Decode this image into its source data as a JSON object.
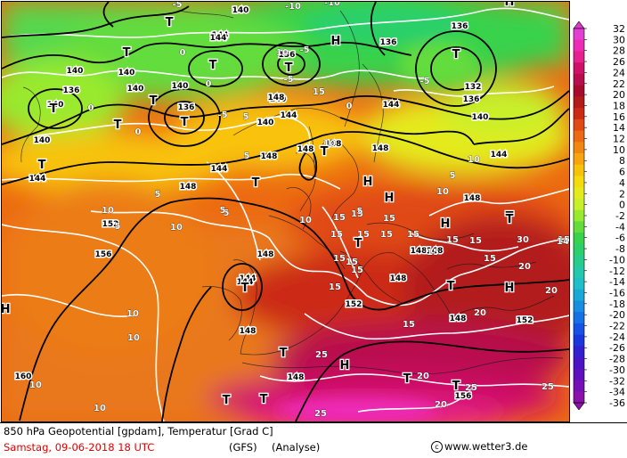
{
  "footer": {
    "title": "850 hPa Geopotential [gpdam], Temperatur [Grad C]",
    "date": "Samstag, 09-06-2018  18 UTC",
    "model": "(GFS)",
    "run": "(Analyse)",
    "copyright": "www.wetter3.de",
    "copyright_symbol": "c"
  },
  "legend": {
    "ticks": [
      "32",
      "30",
      "28",
      "26",
      "24",
      "22",
      "20",
      "18",
      "16",
      "14",
      "12",
      "10",
      "8",
      "6",
      "4",
      "2",
      "0",
      "-2",
      "-4",
      "-6",
      "-8",
      "-10",
      "-12",
      "-14",
      "-16",
      "-18",
      "-20",
      "-22",
      "-24",
      "-26",
      "-28",
      "-30",
      "-32",
      "-34",
      "-36"
    ],
    "colors": [
      "#e23fd3",
      "#ee2bb7",
      "#e6208e",
      "#cf1068",
      "#b80c4d",
      "#a80a2e",
      "#b31a1a",
      "#cc2a14",
      "#e04814",
      "#ec6a12",
      "#f2870f",
      "#f7a40d",
      "#f8c20a",
      "#f5da0d",
      "#e5ea1c",
      "#c8f02a",
      "#99ea2e",
      "#63dc3c",
      "#39d24c",
      "#2bd06b",
      "#27cc8c",
      "#24c8ac",
      "#1fbfc9",
      "#1aa8d8",
      "#188ee0",
      "#1770e5",
      "#1552e5",
      "#1a36dd",
      "#3020d0",
      "#4a14c6",
      "#5f0fbe",
      "#7410b4",
      "#8a12a8"
    ]
  },
  "map": {
    "geopotential_labels": [
      {
        "text": "140"
      },
      {
        "text": "140"
      },
      {
        "text": "140"
      },
      {
        "text": "136"
      },
      {
        "text": "140"
      },
      {
        "text": "136"
      },
      {
        "text": "144"
      },
      {
        "text": "136"
      },
      {
        "text": "140"
      },
      {
        "text": "144"
      },
      {
        "text": "140"
      },
      {
        "text": "136"
      },
      {
        "text": "144"
      },
      {
        "text": "140"
      },
      {
        "text": "144"
      },
      {
        "text": "136"
      },
      {
        "text": "132"
      },
      {
        "text": "136"
      },
      {
        "text": "140"
      },
      {
        "text": "144"
      },
      {
        "text": "144"
      },
      {
        "text": "148"
      },
      {
        "text": "148"
      },
      {
        "text": "148"
      },
      {
        "text": "148"
      },
      {
        "text": "148"
      },
      {
        "text": "152"
      },
      {
        "text": "156"
      },
      {
        "text": "148"
      },
      {
        "text": "144"
      },
      {
        "text": "148"
      },
      {
        "text": "148"
      },
      {
        "text": "148"
      },
      {
        "text": "152"
      },
      {
        "text": "148"
      },
      {
        "text": "152"
      },
      {
        "text": "148"
      },
      {
        "text": "160"
      },
      {
        "text": "148"
      },
      {
        "text": "156"
      },
      {
        "text": "140"
      },
      {
        "text": "144"
      },
      {
        "text": "140"
      },
      {
        "text": "148"
      },
      {
        "text": "144"
      },
      {
        "text": "148"
      }
    ],
    "temperature_labels": [
      {
        "text": "-5"
      },
      {
        "text": "-10"
      },
      {
        "text": "-10"
      },
      {
        "text": "-5"
      },
      {
        "text": "-5"
      },
      {
        "text": "-5"
      },
      {
        "text": "0"
      },
      {
        "text": "0"
      },
      {
        "text": "0"
      },
      {
        "text": "0"
      },
      {
        "text": "5"
      },
      {
        "text": "5"
      },
      {
        "text": "0"
      },
      {
        "text": "5"
      },
      {
        "text": "5"
      },
      {
        "text": "10"
      },
      {
        "text": "10"
      },
      {
        "text": "5"
      },
      {
        "text": "10"
      },
      {
        "text": "5"
      },
      {
        "text": "10"
      },
      {
        "text": "10"
      },
      {
        "text": "10"
      },
      {
        "text": "10"
      },
      {
        "text": "10"
      },
      {
        "text": "15"
      },
      {
        "text": "15"
      },
      {
        "text": "15"
      },
      {
        "text": "15"
      },
      {
        "text": "15"
      },
      {
        "text": "15"
      },
      {
        "text": "15"
      },
      {
        "text": "15"
      },
      {
        "text": "15"
      },
      {
        "text": "15"
      },
      {
        "text": "15"
      },
      {
        "text": "20"
      },
      {
        "text": "20"
      },
      {
        "text": "20"
      },
      {
        "text": "20"
      },
      {
        "text": "20"
      },
      {
        "text": "25"
      },
      {
        "text": "25"
      },
      {
        "text": "25"
      },
      {
        "text": "25"
      },
      {
        "text": "30"
      },
      {
        "text": "15"
      },
      {
        "text": "10"
      },
      {
        "text": "15"
      },
      {
        "text": "15"
      },
      {
        "text": "15"
      },
      {
        "text": "15"
      },
      {
        "text": "15"
      },
      {
        "text": "14"
      },
      {
        "text": "15"
      },
      {
        "text": "5"
      },
      {
        "text": "10"
      },
      {
        "text": "10"
      },
      {
        "text": "-5"
      },
      {
        "text": "5"
      },
      {
        "text": "10"
      }
    ],
    "pressure_centers": [
      {
        "text": "T"
      },
      {
        "text": "T"
      },
      {
        "text": "T"
      },
      {
        "text": "T"
      },
      {
        "text": "T"
      },
      {
        "text": "T"
      },
      {
        "text": "T"
      },
      {
        "text": "T"
      },
      {
        "text": "T"
      },
      {
        "text": "T"
      },
      {
        "text": "T"
      },
      {
        "text": "T"
      },
      {
        "text": "T"
      },
      {
        "text": "T"
      },
      {
        "text": "T"
      },
      {
        "text": "T"
      },
      {
        "text": "T"
      },
      {
        "text": "T"
      },
      {
        "text": "T"
      },
      {
        "text": "H"
      },
      {
        "text": "H"
      },
      {
        "text": "H"
      },
      {
        "text": "H"
      },
      {
        "text": "H"
      },
      {
        "text": "H"
      },
      {
        "text": "H"
      },
      {
        "text": "H"
      },
      {
        "text": "T"
      },
      {
        "text": "T"
      },
      {
        "text": "T"
      }
    ]
  }
}
